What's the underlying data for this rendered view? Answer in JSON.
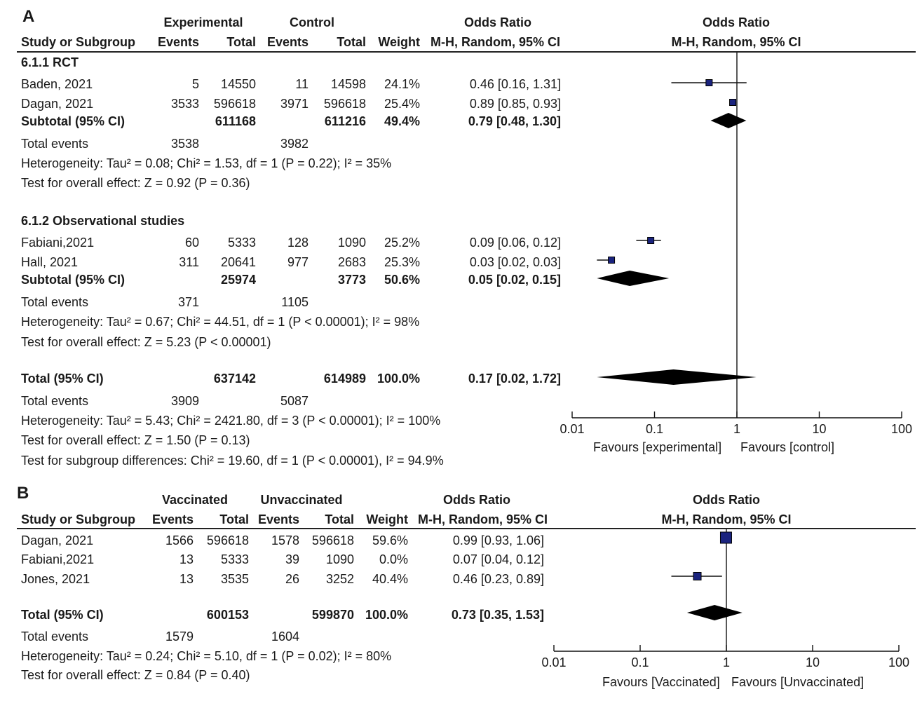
{
  "colors": {
    "square": "#1a237e",
    "ink": "#111111"
  },
  "chart_data": [
    {
      "type": "forest",
      "panel": "A",
      "header": {
        "group1": "Experimental",
        "group2": "Control",
        "study_col": "Study or Subgroup",
        "events": "Events",
        "total": "Total",
        "weight": "Weight",
        "or_title": "Odds Ratio",
        "or_method": "M-H, Random, 95% CI"
      },
      "scale": {
        "type": "log",
        "ticks": [
          "0.01",
          "0.1",
          "1",
          "10",
          "100"
        ],
        "min": 0.01,
        "max": 100,
        "left_label": "Favours [experimental]",
        "right_label": "Favours [control]"
      },
      "subgroups": [
        {
          "title": "6.1.1 RCT",
          "studies": [
            {
              "name": "Baden, 2021",
              "ev1": "5",
              "tot1": "14550",
              "ev2": "11",
              "tot2": "14598",
              "weight": "24.1%",
              "ci_text": "0.46 [0.16, 1.31]",
              "or": 0.46,
              "lo": 0.16,
              "hi": 1.31
            },
            {
              "name": "Dagan, 2021",
              "ev1": "3533",
              "tot1": "596618",
              "ev2": "3971",
              "tot2": "596618",
              "weight": "25.4%",
              "ci_text": "0.89 [0.85, 0.93]",
              "or": 0.89,
              "lo": 0.85,
              "hi": 0.93
            }
          ],
          "subtotal": {
            "label": "Subtotal (95% CI)",
            "tot1": "611168",
            "tot2": "611216",
            "weight": "49.4%",
            "ci_text": "0.79 [0.48, 1.30]",
            "or": 0.79,
            "lo": 0.48,
            "hi": 1.3
          },
          "events": {
            "label": "Total events",
            "ev1": "3538",
            "ev2": "3982"
          },
          "heterogeneity": "Heterogeneity: Tau² = 0.08; Chi² = 1.53, df = 1 (P = 0.22); I² = 35%",
          "overall": "Test for overall effect: Z = 0.92 (P = 0.36)"
        },
        {
          "title": "6.1.2 Observational studies",
          "studies": [
            {
              "name": "Fabiani,2021",
              "ev1": "60",
              "tot1": "5333",
              "ev2": "128",
              "tot2": "1090",
              "weight": "25.2%",
              "ci_text": "0.09 [0.06, 0.12]",
              "or": 0.09,
              "lo": 0.06,
              "hi": 0.12
            },
            {
              "name": "Hall, 2021",
              "ev1": "311",
              "tot1": "20641",
              "ev2": "977",
              "tot2": "2683",
              "weight": "25.3%",
              "ci_text": "0.03 [0.02, 0.03]",
              "or": 0.03,
              "lo": 0.02,
              "hi": 0.03
            }
          ],
          "subtotal": {
            "label": "Subtotal (95% CI)",
            "tot1": "25974",
            "tot2": "3773",
            "weight": "50.6%",
            "ci_text": "0.05 [0.02, 0.15]",
            "or": 0.05,
            "lo": 0.02,
            "hi": 0.15
          },
          "events": {
            "label": "Total events",
            "ev1": "371",
            "ev2": "1105"
          },
          "heterogeneity": "Heterogeneity: Tau² = 0.67; Chi² = 44.51, df = 1 (P < 0.00001); I² = 98%",
          "overall": "Test for overall effect: Z = 5.23 (P < 0.00001)"
        }
      ],
      "total": {
        "label": "Total (95% CI)",
        "tot1": "637142",
        "tot2": "614989",
        "weight": "100.0%",
        "ci_text": "0.17 [0.02, 1.72]",
        "or": 0.17,
        "lo": 0.02,
        "hi": 1.72
      },
      "total_events": {
        "label": "Total events",
        "ev1": "3909",
        "ev2": "5087"
      },
      "heterogeneity": "Heterogeneity: Tau² = 5.43; Chi² = 2421.80, df = 3 (P < 0.00001); I² = 100%",
      "overall": "Test for overall effect: Z = 1.50 (P = 0.13)",
      "subgroup_diff": "Test for subgroup differences: Chi² = 19.60, df = 1 (P < 0.00001), I² = 94.9%"
    },
    {
      "type": "forest",
      "panel": "B",
      "header": {
        "group1": "Vaccinated",
        "group2": "Unvaccinated",
        "study_col": "Study or Subgroup",
        "events": "Events",
        "total": "Total",
        "weight": "Weight",
        "or_title": "Odds Ratio",
        "or_method": "M-H, Random, 95% CI"
      },
      "scale": {
        "type": "log",
        "ticks": [
          "0.01",
          "0.1",
          "1",
          "10",
          "100"
        ],
        "min": 0.01,
        "max": 100,
        "left_label": "Favours [Vaccinated]",
        "right_label": "Favours [Unvaccinated]"
      },
      "studies": [
        {
          "name": "Dagan, 2021",
          "ev1": "1566",
          "tot1": "596618",
          "ev2": "1578",
          "tot2": "596618",
          "weight": "59.6%",
          "ci_text": "0.99 [0.93, 1.06]",
          "or": 0.99,
          "lo": 0.93,
          "hi": 1.06
        },
        {
          "name": "Fabiani,2021",
          "ev1": "13",
          "tot1": "5333",
          "ev2": "39",
          "tot2": "1090",
          "weight": "0.0%",
          "ci_text": "0.07 [0.04, 0.12]",
          "or": 0.07,
          "lo": 0.04,
          "hi": 0.12,
          "excluded": true
        },
        {
          "name": "Jones, 2021",
          "ev1": "13",
          "tot1": "3535",
          "ev2": "26",
          "tot2": "3252",
          "weight": "40.4%",
          "ci_text": "0.46 [0.23, 0.89]",
          "or": 0.46,
          "lo": 0.23,
          "hi": 0.89
        }
      ],
      "total": {
        "label": "Total (95% CI)",
        "tot1": "600153",
        "tot2": "599870",
        "weight": "100.0%",
        "ci_text": "0.73 [0.35, 1.53]",
        "or": 0.73,
        "lo": 0.35,
        "hi": 1.53
      },
      "total_events": {
        "label": "Total events",
        "ev1": "1579",
        "ev2": "1604"
      },
      "heterogeneity": "Heterogeneity: Tau² = 0.24; Chi² = 5.10, df = 1 (P = 0.02); I² = 80%",
      "overall": "Test for overall effect: Z = 0.84 (P = 0.40)"
    }
  ]
}
